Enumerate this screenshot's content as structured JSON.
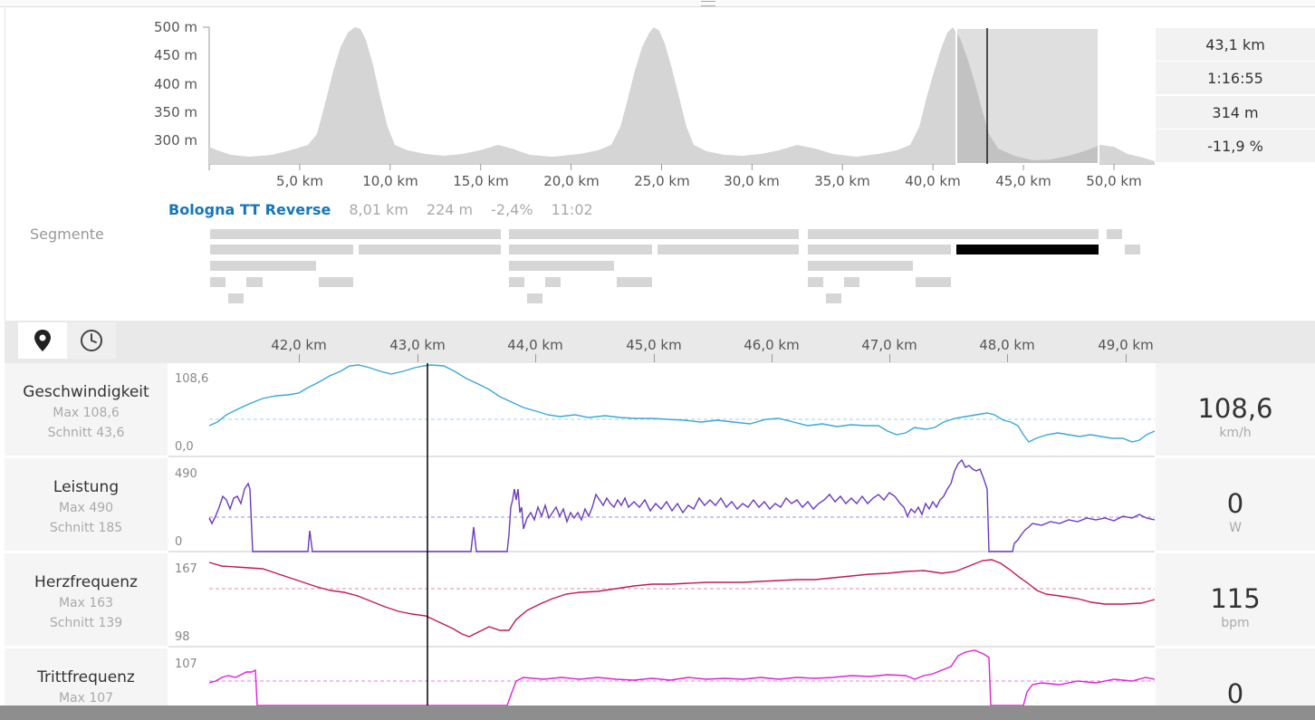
{
  "elevation": {
    "y_labels": [
      "500 m",
      "450 m",
      "400 m",
      "350 m",
      "300 m"
    ],
    "x_labels": [
      "5,0 km",
      "10,0 km",
      "15,0 km",
      "20,0 km",
      "25,0 km",
      "30,0 km",
      "35,0 km",
      "40,0 km",
      "45,0 km",
      "50,0 km"
    ]
  },
  "stats": [
    "43,1 km",
    "1:16:55",
    "314 m",
    "-11,9 %"
  ],
  "segment": {
    "name": "Bologna TT Reverse",
    "distance": "8,01 km",
    "elevation": "224 m",
    "grade": "-2,4%",
    "time": "11:02"
  },
  "segments_label": "Segmente",
  "toolbar": {
    "location_icon": "map-pin-icon",
    "time_icon": "clock-icon",
    "km_labels": [
      "42,0 km",
      "43,0 km",
      "44,0 km",
      "45,0 km",
      "46,0 km",
      "47,0 km",
      "48,0 km",
      "49,0 km"
    ]
  },
  "metrics": [
    {
      "title": "Geschwindigkeit",
      "max": "Max 108,6",
      "avg": "Schnitt 43,6",
      "axis_max": "108,6",
      "axis_min": "0,0",
      "value": "108,6",
      "unit": "km/h",
      "color": "#3aa8d8"
    },
    {
      "title": "Leistung",
      "max": "Max 490",
      "avg": "Schnitt 185",
      "axis_max": "490",
      "axis_min": "0",
      "value": "0",
      "unit": "W",
      "color": "#6a3bc4"
    },
    {
      "title": "Herzfrequenz",
      "max": "Max 163",
      "avg": "Schnitt 139",
      "axis_max": "167",
      "axis_min": "98",
      "value": "115",
      "unit": "bpm",
      "color": "#c41858"
    },
    {
      "title": "Trittfrequenz",
      "max": "Max 107",
      "avg": "",
      "axis_max": "107",
      "axis_min": "",
      "value": "0",
      "unit": "",
      "color": "#e020d8"
    }
  ]
}
